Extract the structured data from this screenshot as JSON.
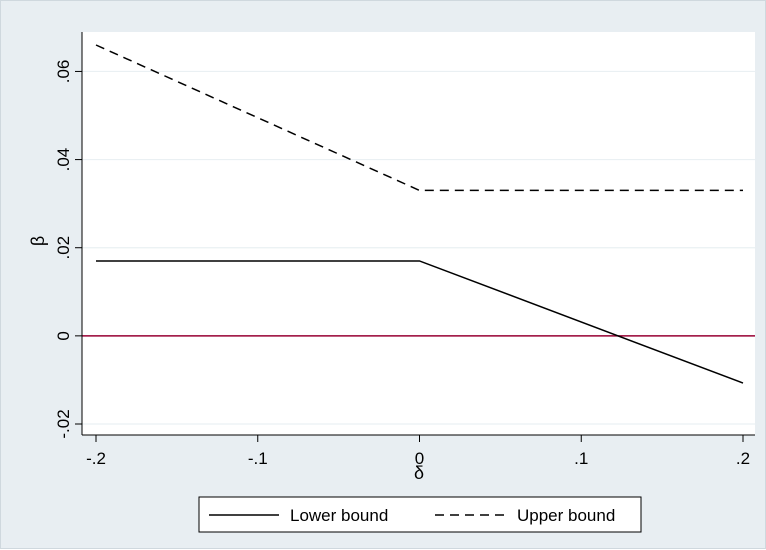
{
  "chart_data": {
    "type": "line",
    "title": "",
    "xlabel": "δ",
    "ylabel": "β",
    "xlim": [
      -0.2,
      0.2
    ],
    "ylim": [
      -0.02,
      0.066
    ],
    "xticks": [
      -0.2,
      -0.1,
      0,
      0.1,
      0.2
    ],
    "xtick_labels": [
      "-.2",
      "-.1",
      "0",
      ".1",
      ".2"
    ],
    "yticks": [
      -0.02,
      0,
      0.02,
      0.04,
      0.06
    ],
    "ytick_labels": [
      "-.02",
      "0",
      ".02",
      ".04",
      ".06"
    ],
    "grid": "horizontal",
    "series": [
      {
        "name": "Lower bound",
        "style": "solid",
        "color": "#000000",
        "x": [
          -0.2,
          0,
          0.2
        ],
        "y": [
          0.017,
          0.017,
          -0.0107
        ]
      },
      {
        "name": "Upper bound",
        "style": "dashed",
        "color": "#000000",
        "x": [
          -0.2,
          0,
          0.2
        ],
        "y": [
          0.066,
          0.033,
          0.033
        ]
      }
    ],
    "reference_lines": [
      {
        "axis": "y",
        "value": 0,
        "color": "#990033"
      }
    ],
    "legend": {
      "position": "bottom-center",
      "entries": [
        "Lower bound",
        "Upper bound"
      ]
    }
  }
}
